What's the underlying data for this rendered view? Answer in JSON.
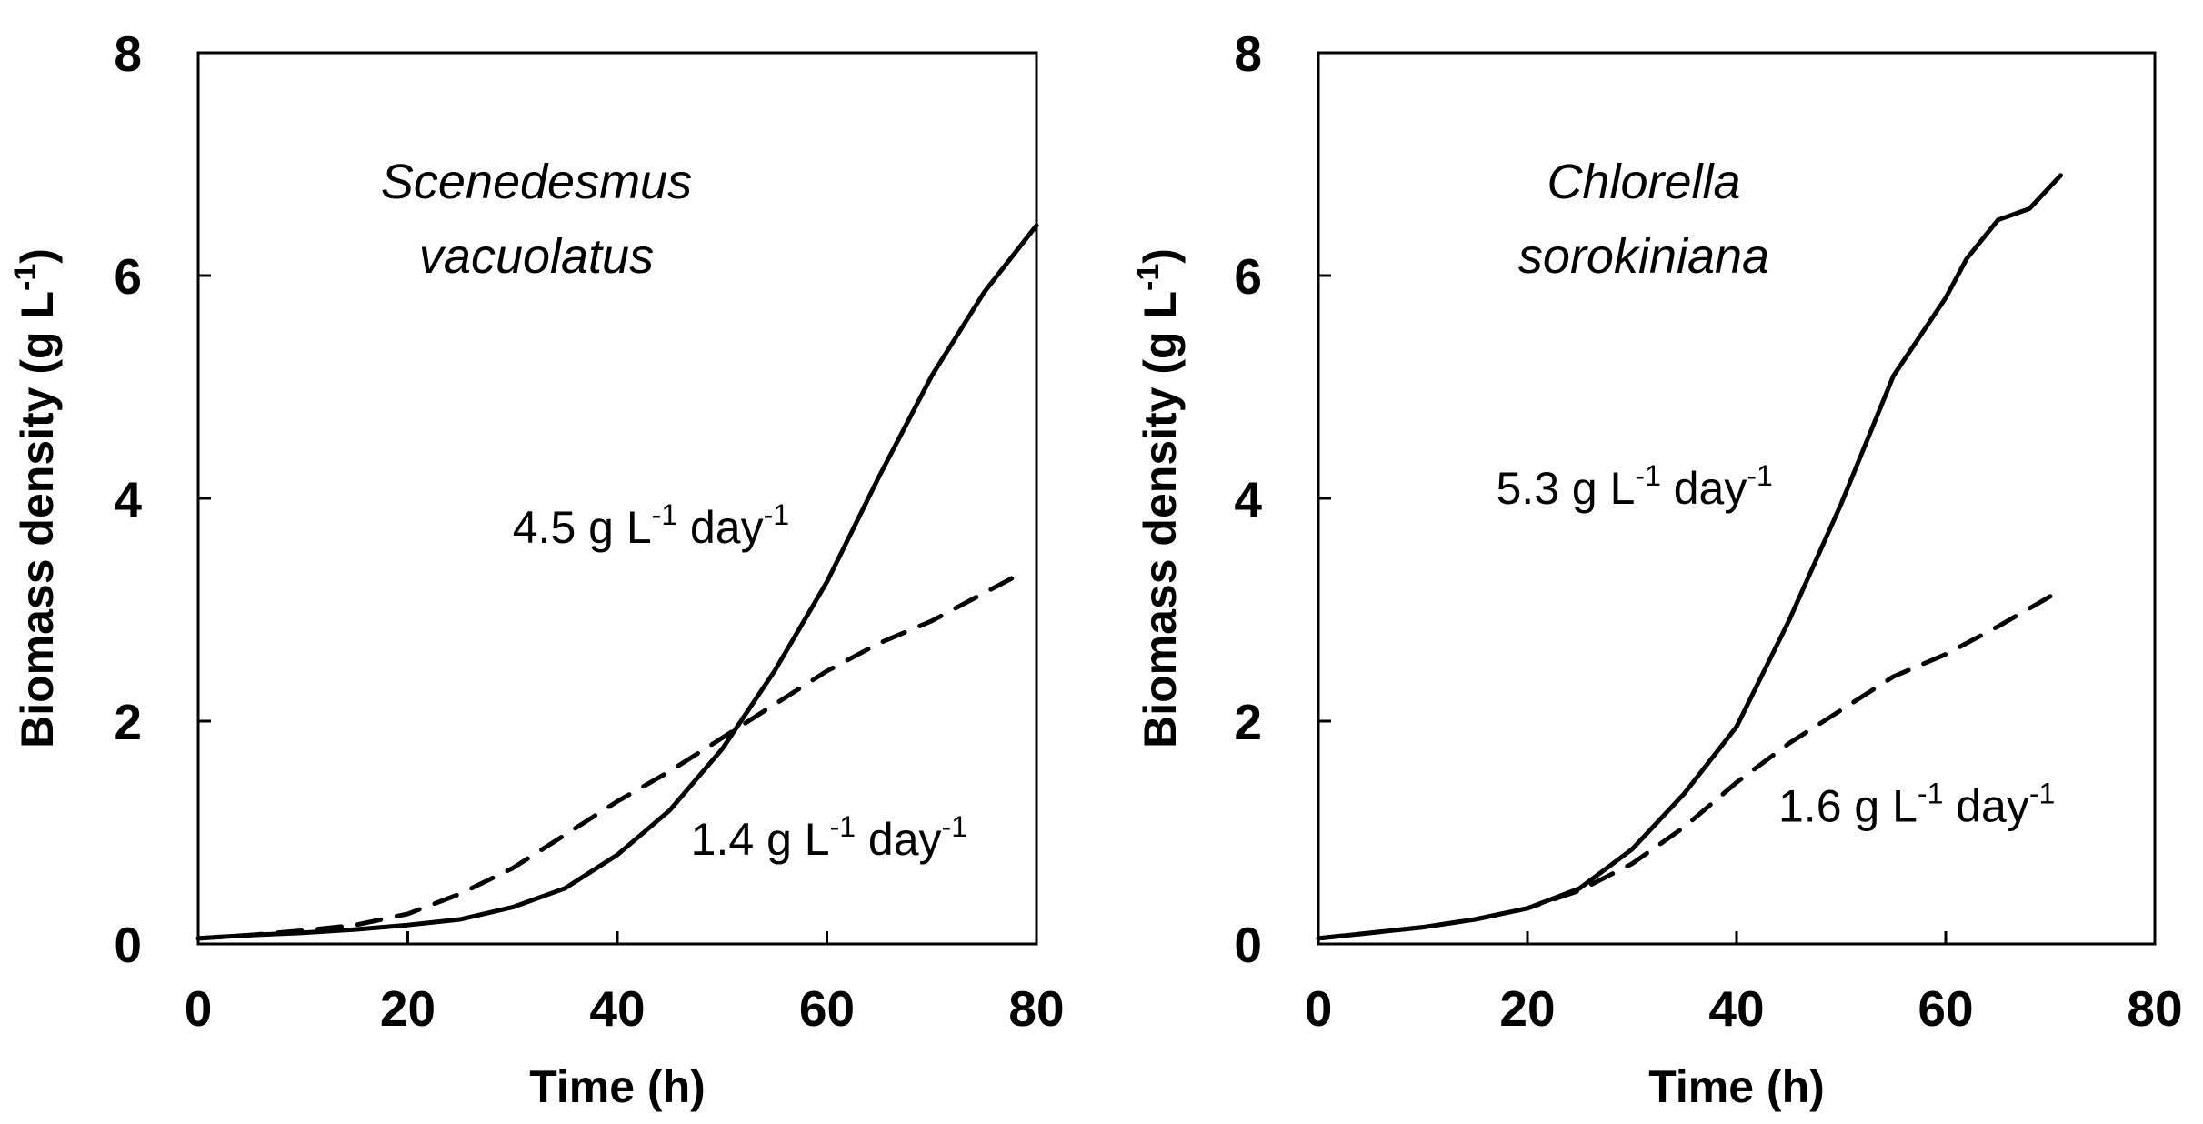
{
  "chart_data": [
    {
      "type": "line",
      "title": "",
      "annotation_species": [
        "Scenedesmus",
        "vacuolatus"
      ],
      "xlabel": "Time (h)",
      "ylabel_main": "Biomass density (g L",
      "ylabel_sup": "-1",
      "ylabel_close": ")",
      "xlim": [
        0,
        80
      ],
      "ylim": [
        0,
        8
      ],
      "x_ticks": [
        0,
        20,
        40,
        60,
        80
      ],
      "x_tick_labels": [
        "0",
        "20",
        "40",
        "60",
        "80"
      ],
      "y_ticks": [
        0,
        2,
        4,
        6,
        8
      ],
      "y_tick_labels": [
        "0",
        "2",
        "4",
        "6",
        "8"
      ],
      "grid": false,
      "series": [
        {
          "name": "solid",
          "style": "solid",
          "label": {
            "value": "4.5",
            "unit1": "g L",
            "sup1": "-1",
            "unit2": "day",
            "sup2": "-1",
            "anchor": [
              30,
              3.6
            ]
          },
          "x": [
            0,
            5,
            10,
            15,
            20,
            25,
            30,
            35,
            40,
            45,
            50,
            55,
            60,
            65,
            70,
            75,
            80
          ],
          "y": [
            0.05,
            0.08,
            0.1,
            0.13,
            0.17,
            0.22,
            0.33,
            0.5,
            0.8,
            1.2,
            1.75,
            2.45,
            3.25,
            4.2,
            5.1,
            5.85,
            6.45
          ]
        },
        {
          "name": "dashed",
          "style": "dashed",
          "label": {
            "value": "1.4",
            "unit1": "g L",
            "sup1": "-1",
            "unit2": "day",
            "sup2": "-1",
            "anchor": [
              47,
              0.8
            ]
          },
          "x": [
            0,
            5,
            10,
            15,
            20,
            25,
            30,
            35,
            40,
            45,
            50,
            55,
            60,
            65,
            70,
            75,
            78
          ],
          "y": [
            0.05,
            0.08,
            0.12,
            0.17,
            0.27,
            0.45,
            0.68,
            0.98,
            1.28,
            1.55,
            1.85,
            2.15,
            2.45,
            2.7,
            2.9,
            3.15,
            3.3
          ]
        }
      ]
    },
    {
      "type": "line",
      "title": "",
      "annotation_species": [
        "Chlorella",
        "sorokiniana"
      ],
      "xlabel": "Time (h)",
      "ylabel_main": "Biomass density (g L",
      "ylabel_sup": "-1",
      "ylabel_close": ")",
      "xlim": [
        0,
        80
      ],
      "ylim": [
        0,
        8
      ],
      "x_ticks": [
        0,
        20,
        40,
        60,
        80
      ],
      "x_tick_labels": [
        "0",
        "20",
        "40",
        "60",
        "80"
      ],
      "y_ticks": [
        0,
        2,
        4,
        6,
        8
      ],
      "y_tick_labels": [
        "0",
        "2",
        "4",
        "6",
        "8"
      ],
      "grid": false,
      "series": [
        {
          "name": "solid",
          "style": "solid",
          "label": {
            "value": "5.3",
            "unit1": "g L",
            "sup1": "-1",
            "unit2": "day",
            "sup2": "-1",
            "anchor": [
              17,
              3.95
            ]
          },
          "x": [
            0,
            5,
            10,
            15,
            20,
            25,
            30,
            35,
            40,
            45,
            50,
            55,
            60,
            62,
            65,
            68,
            71
          ],
          "y": [
            0.05,
            0.1,
            0.15,
            0.22,
            0.32,
            0.5,
            0.85,
            1.35,
            1.95,
            2.9,
            3.95,
            5.1,
            5.8,
            6.15,
            6.5,
            6.6,
            6.9
          ]
        },
        {
          "name": "dashed",
          "style": "dashed",
          "label": {
            "value": "1.6",
            "unit1": "g L",
            "sup1": "-1",
            "unit2": "day",
            "sup2": "-1",
            "anchor": [
              44,
              1.1
            ]
          },
          "x": [
            0,
            5,
            10,
            15,
            20,
            25,
            30,
            35,
            40,
            45,
            50,
            55,
            60,
            65,
            70
          ],
          "y": [
            0.05,
            0.1,
            0.15,
            0.22,
            0.32,
            0.48,
            0.72,
            1.05,
            1.45,
            1.8,
            2.1,
            2.4,
            2.6,
            2.85,
            3.12
          ]
        }
      ]
    }
  ]
}
